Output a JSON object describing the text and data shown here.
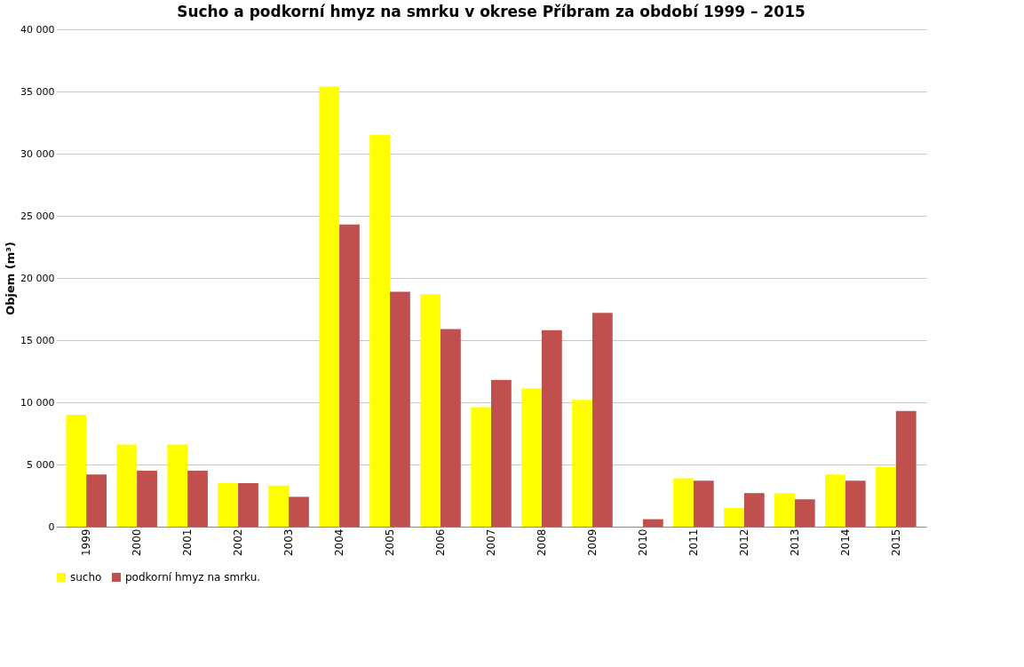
{
  "chart_data": {
    "type": "bar",
    "title": "Sucho a podkorní hmyz na smrku  v okrese  Příbram  za období 1999 – 2015",
    "ylabel": "Objem (m³)",
    "categories": [
      "1999",
      "2000",
      "2001",
      "2002",
      "2003",
      "2004",
      "2005",
      "2006",
      "2007",
      "2008",
      "2009",
      "2010",
      "2011",
      "2012",
      "2013",
      "2014",
      "2015"
    ],
    "series": [
      {
        "name": "sucho",
        "color": "#ffff00",
        "values": [
          9000,
          6600,
          6600,
          3500,
          3300,
          35400,
          31500,
          18700,
          9600,
          11100,
          10200,
          0,
          3900,
          1500,
          2700,
          4200,
          4800
        ]
      },
      {
        "name": "podkorní hmyz na smrku.",
        "color": "#c0504d",
        "values": [
          4200,
          4500,
          4500,
          3500,
          2400,
          24300,
          18900,
          15900,
          11800,
          15800,
          17200,
          600,
          3700,
          2700,
          2200,
          3700,
          9300
        ]
      }
    ],
    "ylim": [
      0,
      40000
    ],
    "yticks": [
      {
        "value": 0,
        "label": "0"
      },
      {
        "value": 5000,
        "label": "5 000"
      },
      {
        "value": 10000,
        "label": "10 000"
      },
      {
        "value": 15000,
        "label": "15 000"
      },
      {
        "value": 20000,
        "label": "20 000"
      },
      {
        "value": 25000,
        "label": "25 000"
      },
      {
        "value": 30000,
        "label": "30 000"
      },
      {
        "value": 35000,
        "label": "35 000"
      },
      {
        "value": 40000,
        "label": "40 000"
      }
    ],
    "grid": "y",
    "legend": "bottom"
  }
}
